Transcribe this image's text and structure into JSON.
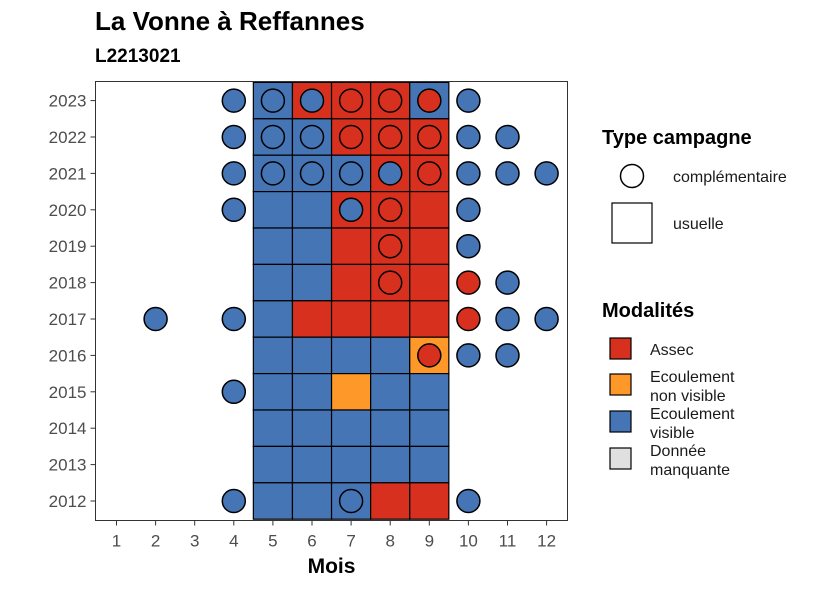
{
  "chart_data": {
    "type": "heatmap",
    "title": "La Vonne à Reffannes",
    "subtitle": "L2213021",
    "xlabel": "Mois",
    "ylabel": "",
    "x_ticks": [
      "1",
      "2",
      "3",
      "4",
      "5",
      "6",
      "7",
      "8",
      "9",
      "10",
      "11",
      "12"
    ],
    "y_ticks": [
      "2012",
      "2013",
      "2014",
      "2015",
      "2016",
      "2017",
      "2018",
      "2019",
      "2020",
      "2021",
      "2022",
      "2023"
    ],
    "colors": {
      "Assec": "#d7301f",
      "Ecoulement non visible": "#fe9929",
      "Ecoulement visible": "#4575b4",
      "Donnée manquante": "#e0e0e0"
    },
    "tiles_usuelle": [
      {
        "year": 2023,
        "months": [
          5,
          6,
          7,
          8,
          9
        ],
        "mod": [
          "V",
          "A",
          "A",
          "A",
          "V"
        ]
      },
      {
        "year": 2022,
        "months": [
          5,
          6,
          7,
          8,
          9
        ],
        "mod": [
          "V",
          "V",
          "A",
          "A",
          "A"
        ]
      },
      {
        "year": 2021,
        "months": [
          5,
          6,
          7,
          8,
          9
        ],
        "mod": [
          "V",
          "V",
          "V",
          "A",
          "A"
        ]
      },
      {
        "year": 2020,
        "months": [
          5,
          6,
          7,
          8,
          9
        ],
        "mod": [
          "V",
          "V",
          "A",
          "A",
          "A"
        ]
      },
      {
        "year": 2019,
        "months": [
          5,
          6,
          7,
          8,
          9
        ],
        "mod": [
          "V",
          "V",
          "A",
          "A",
          "A"
        ]
      },
      {
        "year": 2018,
        "months": [
          5,
          6,
          7,
          8,
          9
        ],
        "mod": [
          "V",
          "V",
          "A",
          "A",
          "A"
        ]
      },
      {
        "year": 2017,
        "months": [
          5,
          6,
          7,
          8,
          9
        ],
        "mod": [
          "V",
          "A",
          "A",
          "A",
          "A"
        ]
      },
      {
        "year": 2016,
        "months": [
          5,
          6,
          7,
          8,
          9
        ],
        "mod": [
          "V",
          "V",
          "V",
          "V",
          "N"
        ]
      },
      {
        "year": 2015,
        "months": [
          5,
          6,
          7,
          8,
          9
        ],
        "mod": [
          "V",
          "V",
          "N",
          "V",
          "V"
        ]
      },
      {
        "year": 2014,
        "months": [
          5,
          6,
          7,
          8,
          9
        ],
        "mod": [
          "V",
          "V",
          "V",
          "V",
          "V"
        ]
      },
      {
        "year": 2013,
        "months": [
          5,
          6,
          7,
          8,
          9
        ],
        "mod": [
          "V",
          "V",
          "V",
          "V",
          "V"
        ]
      },
      {
        "year": 2012,
        "months": [
          5,
          6,
          7,
          8,
          9
        ],
        "mod": [
          "V",
          "V",
          "V",
          "A",
          "A"
        ]
      }
    ],
    "points_complementaire": [
      {
        "year": 2023,
        "month": 4,
        "mod": "V"
      },
      {
        "year": 2023,
        "month": 5,
        "mod": "V"
      },
      {
        "year": 2023,
        "month": 6,
        "mod": "V"
      },
      {
        "year": 2023,
        "month": 7,
        "mod": "A"
      },
      {
        "year": 2023,
        "month": 8,
        "mod": "A"
      },
      {
        "year": 2023,
        "month": 9,
        "mod": "A"
      },
      {
        "year": 2023,
        "month": 10,
        "mod": "V"
      },
      {
        "year": 2022,
        "month": 4,
        "mod": "V"
      },
      {
        "year": 2022,
        "month": 5,
        "mod": "V"
      },
      {
        "year": 2022,
        "month": 6,
        "mod": "V"
      },
      {
        "year": 2022,
        "month": 7,
        "mod": "A"
      },
      {
        "year": 2022,
        "month": 8,
        "mod": "A"
      },
      {
        "year": 2022,
        "month": 9,
        "mod": "A"
      },
      {
        "year": 2022,
        "month": 10,
        "mod": "V"
      },
      {
        "year": 2022,
        "month": 11,
        "mod": "V"
      },
      {
        "year": 2021,
        "month": 4,
        "mod": "V"
      },
      {
        "year": 2021,
        "month": 5,
        "mod": "V"
      },
      {
        "year": 2021,
        "month": 6,
        "mod": "V"
      },
      {
        "year": 2021,
        "month": 7,
        "mod": "V"
      },
      {
        "year": 2021,
        "month": 8,
        "mod": "V"
      },
      {
        "year": 2021,
        "month": 9,
        "mod": "A"
      },
      {
        "year": 2021,
        "month": 10,
        "mod": "V"
      },
      {
        "year": 2021,
        "month": 11,
        "mod": "V"
      },
      {
        "year": 2021,
        "month": 12,
        "mod": "V"
      },
      {
        "year": 2020,
        "month": 4,
        "mod": "V"
      },
      {
        "year": 2020,
        "month": 7,
        "mod": "V"
      },
      {
        "year": 2020,
        "month": 8,
        "mod": "A"
      },
      {
        "year": 2020,
        "month": 10,
        "mod": "V"
      },
      {
        "year": 2019,
        "month": 8,
        "mod": "A"
      },
      {
        "year": 2019,
        "month": 10,
        "mod": "V"
      },
      {
        "year": 2018,
        "month": 8,
        "mod": "A"
      },
      {
        "year": 2018,
        "month": 10,
        "mod": "A"
      },
      {
        "year": 2018,
        "month": 11,
        "mod": "V"
      },
      {
        "year": 2017,
        "month": 2,
        "mod": "V"
      },
      {
        "year": 2017,
        "month": 4,
        "mod": "V"
      },
      {
        "year": 2017,
        "month": 10,
        "mod": "A"
      },
      {
        "year": 2017,
        "month": 11,
        "mod": "V"
      },
      {
        "year": 2017,
        "month": 12,
        "mod": "V"
      },
      {
        "year": 2016,
        "month": 9,
        "mod": "A"
      },
      {
        "year": 2016,
        "month": 10,
        "mod": "V"
      },
      {
        "year": 2016,
        "month": 11,
        "mod": "V"
      },
      {
        "year": 2015,
        "month": 4,
        "mod": "V"
      },
      {
        "year": 2012,
        "month": 4,
        "mod": "V"
      },
      {
        "year": 2012,
        "month": 7,
        "mod": "V"
      },
      {
        "year": 2012,
        "month": 10,
        "mod": "V"
      }
    ],
    "legend": {
      "type_title": "Type campagne",
      "type_items": [
        "complémentaire",
        "usuelle"
      ],
      "mod_title": "Modalités",
      "mod_items": [
        {
          "key": "A",
          "lines": [
            "Assec"
          ]
        },
        {
          "key": "N",
          "lines": [
            "Ecoulement",
            "non visible"
          ]
        },
        {
          "key": "V",
          "lines": [
            "Ecoulement",
            "visible"
          ]
        },
        {
          "key": "M",
          "lines": [
            "Donnée",
            "manquante"
          ]
        }
      ],
      "placement": "right"
    }
  }
}
